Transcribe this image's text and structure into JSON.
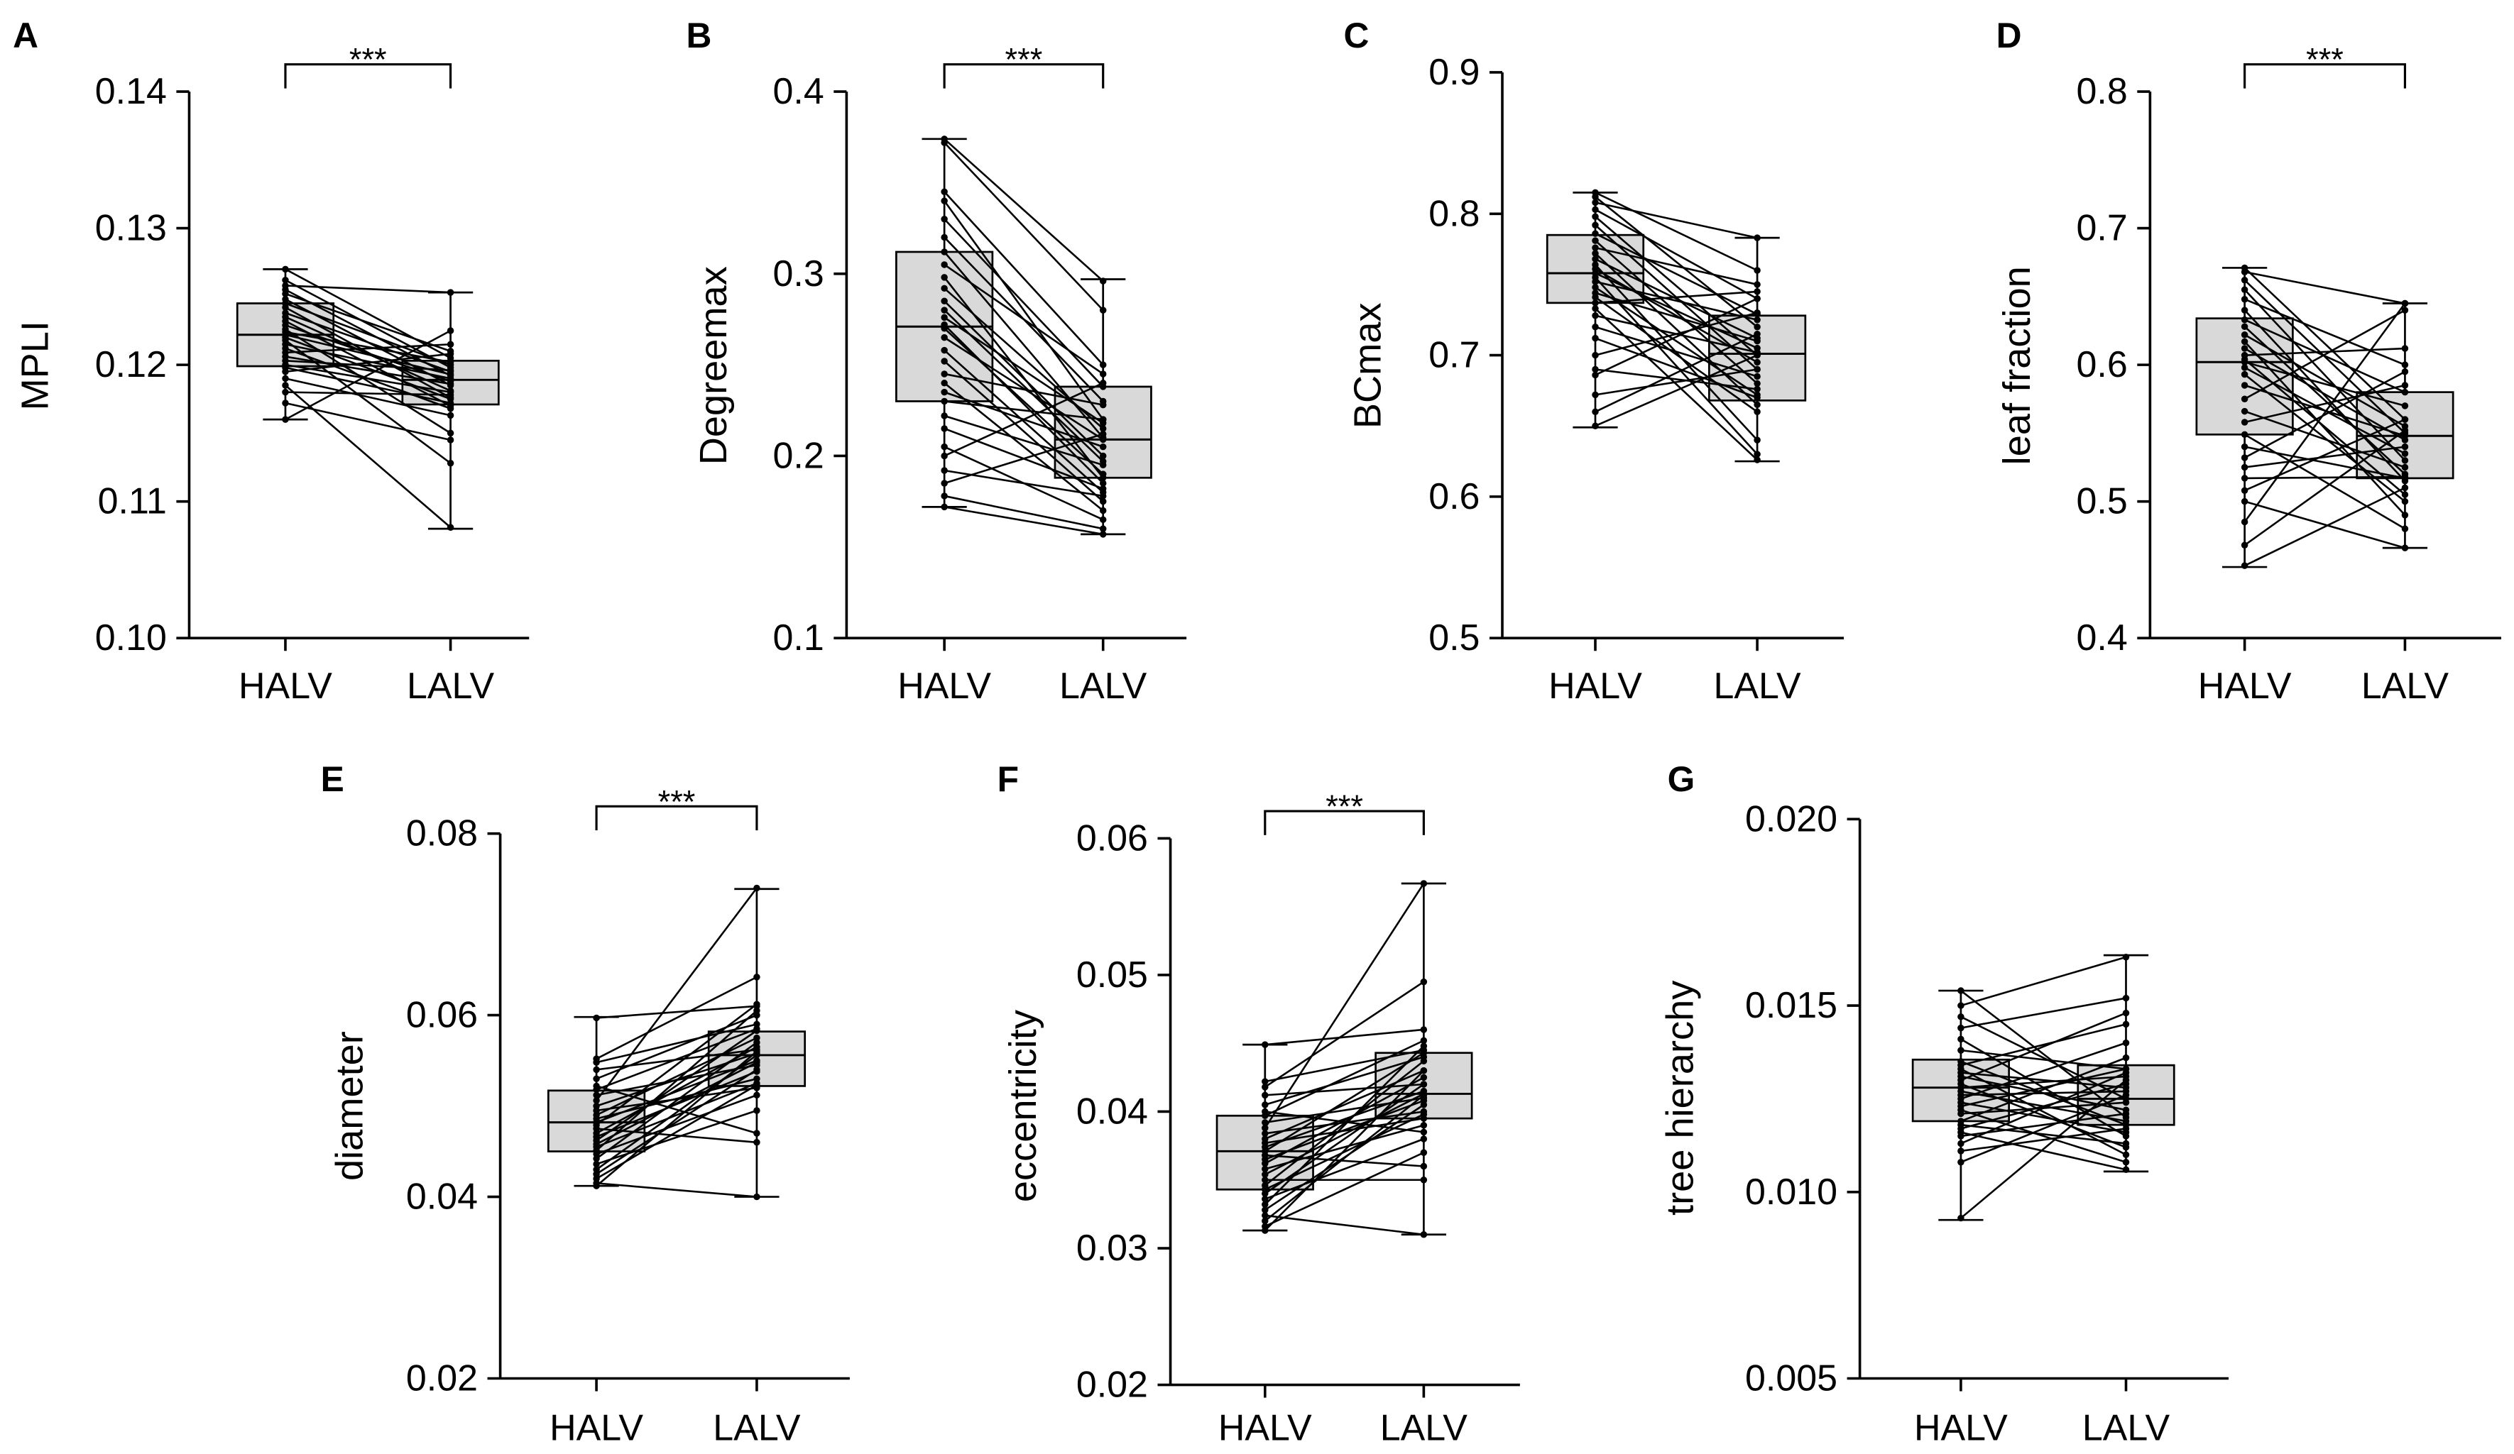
{
  "style": {
    "box_fill": "#d9d9d9",
    "ink": "#000000"
  },
  "chart_data": [
    {
      "panel": "A",
      "type": "box",
      "ylabel": "MPLI",
      "categories": [
        "HALV",
        "LALV"
      ],
      "ylim": [
        0.1,
        0.14
      ],
      "yticks": [
        "0.10",
        "0.11",
        "0.12",
        "0.13",
        "0.14"
      ],
      "significance": "***",
      "box": [
        {
          "min": 0.116,
          "q1": 0.1199,
          "median": 0.1222,
          "q3": 0.1245,
          "max": 0.127
        },
        {
          "min": 0.108,
          "q1": 0.1171,
          "median": 0.1189,
          "q3": 0.1203,
          "max": 0.1253
        }
      ],
      "pairs": [
        [
          0.127,
          0.1205
        ],
        [
          0.1262,
          0.1198
        ],
        [
          0.1258,
          0.1253
        ],
        [
          0.1255,
          0.1192
        ],
        [
          0.1252,
          0.121
        ],
        [
          0.1248,
          0.1185
        ],
        [
          0.1245,
          0.12
        ],
        [
          0.1242,
          0.1176
        ],
        [
          0.1238,
          0.1195
        ],
        [
          0.1235,
          0.1181
        ],
        [
          0.1232,
          0.117
        ],
        [
          0.1229,
          0.1188
        ],
        [
          0.1226,
          0.115
        ],
        [
          0.1224,
          0.1202
        ],
        [
          0.1222,
          0.1193
        ],
        [
          0.122,
          0.1175
        ],
        [
          0.1218,
          0.1128
        ],
        [
          0.1215,
          0.119
        ],
        [
          0.1212,
          0.1168
        ],
        [
          0.1209,
          0.1215
        ],
        [
          0.1206,
          0.1186
        ],
        [
          0.1203,
          0.1196
        ],
        [
          0.12,
          0.118
        ],
        [
          0.1198,
          0.1172
        ],
        [
          0.1195,
          0.1208
        ],
        [
          0.119,
          0.1163
        ],
        [
          0.1185,
          0.1081
        ],
        [
          0.118,
          0.1178
        ],
        [
          0.1172,
          0.1145
        ],
        [
          0.116,
          0.1225
        ]
      ]
    },
    {
      "panel": "B",
      "type": "box",
      "ylabel": "Degreemax",
      "categories": [
        "HALV",
        "LALV"
      ],
      "ylim": [
        0.1,
        0.4
      ],
      "yticks": [
        "0.1",
        "0.2",
        "0.3",
        "0.4"
      ],
      "significance": "***",
      "box": [
        {
          "min": 0.172,
          "q1": 0.23,
          "median": 0.271,
          "q3": 0.312,
          "max": 0.374
        },
        {
          "min": 0.157,
          "q1": 0.188,
          "median": 0.209,
          "q3": 0.238,
          "max": 0.297
        }
      ],
      "pairs": [
        [
          0.374,
          0.296
        ],
        [
          0.372,
          0.28
        ],
        [
          0.345,
          0.25
        ],
        [
          0.34,
          0.22
        ],
        [
          0.33,
          0.238
        ],
        [
          0.32,
          0.23
        ],
        [
          0.312,
          0.21
        ],
        [
          0.305,
          0.245
        ],
        [
          0.298,
          0.188
        ],
        [
          0.292,
          0.215
        ],
        [
          0.285,
          0.2
        ],
        [
          0.28,
          0.197
        ],
        [
          0.276,
          0.218
        ],
        [
          0.272,
          0.185
        ],
        [
          0.27,
          0.19
        ],
        [
          0.265,
          0.209
        ],
        [
          0.258,
          0.18
        ],
        [
          0.252,
          0.175
        ],
        [
          0.245,
          0.228
        ],
        [
          0.24,
          0.17
        ],
        [
          0.235,
          0.205
        ],
        [
          0.23,
          0.22
        ],
        [
          0.222,
          0.195
        ],
        [
          0.215,
          0.182
        ],
        [
          0.205,
          0.165
        ],
        [
          0.2,
          0.24
        ],
        [
          0.192,
          0.178
        ],
        [
          0.185,
          0.212
        ],
        [
          0.178,
          0.16
        ],
        [
          0.172,
          0.157
        ]
      ]
    },
    {
      "panel": "C",
      "type": "box",
      "ylabel": "BCmax",
      "categories": [
        "HALV",
        "LALV"
      ],
      "ylim": [
        0.5,
        0.9
      ],
      "yticks": [
        "0.5",
        "0.6",
        "0.7",
        "0.8",
        "0.9"
      ],
      "significance": null,
      "box": [
        {
          "min": 0.649,
          "q1": 0.737,
          "median": 0.758,
          "q3": 0.785,
          "max": 0.815
        },
        {
          "min": 0.625,
          "q1": 0.668,
          "median": 0.701,
          "q3": 0.728,
          "max": 0.783
        }
      ],
      "pairs": [
        [
          0.815,
          0.76
        ],
        [
          0.812,
          0.72
        ],
        [
          0.808,
          0.783
        ],
        [
          0.803,
          0.74
        ],
        [
          0.798,
          0.7
        ],
        [
          0.792,
          0.69
        ],
        [
          0.786,
          0.729
        ],
        [
          0.781,
          0.68
        ],
        [
          0.776,
          0.75
        ],
        [
          0.772,
          0.665
        ],
        [
          0.768,
          0.712
        ],
        [
          0.764,
          0.64
        ],
        [
          0.761,
          0.695
        ],
        [
          0.758,
          0.705
        ],
        [
          0.755,
          0.63
        ],
        [
          0.752,
          0.725
        ],
        [
          0.748,
          0.672
        ],
        [
          0.744,
          0.71
        ],
        [
          0.741,
          0.66
        ],
        [
          0.737,
          0.745
        ],
        [
          0.733,
          0.626
        ],
        [
          0.728,
          0.702
        ],
        [
          0.72,
          0.685
        ],
        [
          0.712,
          0.67
        ],
        [
          0.7,
          0.73
        ],
        [
          0.69,
          0.676
        ],
        [
          0.686,
          0.74
        ],
        [
          0.672,
          0.69
        ],
        [
          0.66,
          0.715
        ],
        [
          0.65,
          0.7
        ]
      ]
    },
    {
      "panel": "D",
      "type": "box",
      "ylabel": "leaf fraction",
      "categories": [
        "HALV",
        "LALV"
      ],
      "ylim": [
        0.4,
        0.8
      ],
      "yticks": [
        "0.4",
        "0.5",
        "0.6",
        "0.7",
        "0.8"
      ],
      "significance": "***",
      "box": [
        {
          "min": 0.452,
          "q1": 0.549,
          "median": 0.602,
          "q3": 0.634,
          "max": 0.671
        },
        {
          "min": 0.466,
          "q1": 0.517,
          "median": 0.548,
          "q3": 0.58,
          "max": 0.645
        }
      ],
      "pairs": [
        [
          0.671,
          0.56
        ],
        [
          0.668,
          0.645
        ],
        [
          0.662,
          0.55
        ],
        [
          0.655,
          0.53
        ],
        [
          0.648,
          0.6
        ],
        [
          0.64,
          0.515
        ],
        [
          0.633,
          0.58
        ],
        [
          0.628,
          0.52
        ],
        [
          0.622,
          0.555
        ],
        [
          0.617,
          0.49
        ],
        [
          0.612,
          0.545
        ],
        [
          0.607,
          0.612
        ],
        [
          0.604,
          0.505
        ],
        [
          0.602,
          0.57
        ],
        [
          0.598,
          0.535
        ],
        [
          0.593,
          0.5
        ],
        [
          0.585,
          0.548
        ],
        [
          0.575,
          0.64
        ],
        [
          0.566,
          0.525
        ],
        [
          0.558,
          0.585
        ],
        [
          0.549,
          0.48
        ],
        [
          0.54,
          0.517
        ],
        [
          0.532,
          0.595
        ],
        [
          0.525,
          0.54
        ],
        [
          0.517,
          0.518
        ],
        [
          0.508,
          0.56
        ],
        [
          0.5,
          0.466
        ],
        [
          0.485,
          0.645
        ],
        [
          0.468,
          0.552
        ],
        [
          0.453,
          0.51
        ]
      ]
    },
    {
      "panel": "E",
      "type": "box",
      "ylabel": "diameter",
      "categories": [
        "HALV",
        "LALV"
      ],
      "ylim": [
        0.02,
        0.08
      ],
      "yticks": [
        "0.02",
        "0.04",
        "0.06",
        "0.08"
      ],
      "significance": "***",
      "box": [
        {
          "min": 0.0412,
          "q1": 0.045,
          "median": 0.0482,
          "q3": 0.0517,
          "max": 0.0598
        },
        {
          "min": 0.04,
          "q1": 0.0522,
          "median": 0.0556,
          "q3": 0.0582,
          "max": 0.0739
        }
      ],
      "pairs": [
        [
          0.0597,
          0.061
        ],
        [
          0.0552,
          0.0642
        ],
        [
          0.0548,
          0.059
        ],
        [
          0.054,
          0.0562
        ],
        [
          0.053,
          0.06
        ],
        [
          0.0522,
          0.047
        ],
        [
          0.0518,
          0.0585
        ],
        [
          0.0512,
          0.0545
        ],
        [
          0.0506,
          0.074
        ],
        [
          0.05,
          0.0558
        ],
        [
          0.0495,
          0.052
        ],
        [
          0.049,
          0.0575
        ],
        [
          0.0486,
          0.053
        ],
        [
          0.0482,
          0.055
        ],
        [
          0.0479,
          0.0612
        ],
        [
          0.0475,
          0.046
        ],
        [
          0.047,
          0.0565
        ],
        [
          0.0466,
          0.0538
        ],
        [
          0.0462,
          0.0583
        ],
        [
          0.0458,
          0.0548
        ],
        [
          0.0455,
          0.0525
        ],
        [
          0.0451,
          0.0605
        ],
        [
          0.0447,
          0.0512
        ],
        [
          0.0442,
          0.057
        ],
        [
          0.0436,
          0.0495
        ],
        [
          0.043,
          0.0556
        ],
        [
          0.0425,
          0.054
        ],
        [
          0.042,
          0.0523
        ],
        [
          0.0415,
          0.04
        ],
        [
          0.0412,
          0.056
        ]
      ]
    },
    {
      "panel": "F",
      "type": "box",
      "ylabel": "eccentricity",
      "categories": [
        "HALV",
        "LALV"
      ],
      "ylim": [
        0.02,
        0.06
      ],
      "yticks": [
        "0.02",
        "0.03",
        "0.04",
        "0.05",
        "0.06"
      ],
      "significance": "***",
      "box": [
        {
          "min": 0.0313,
          "q1": 0.0343,
          "median": 0.0371,
          "q3": 0.0397,
          "max": 0.0449
        },
        {
          "min": 0.031,
          "q1": 0.0395,
          "median": 0.0413,
          "q3": 0.0443,
          "max": 0.0567
        }
      ],
      "pairs": [
        [
          0.0449,
          0.046
        ],
        [
          0.0422,
          0.0445
        ],
        [
          0.0418,
          0.0495
        ],
        [
          0.0412,
          0.042
        ],
        [
          0.0405,
          0.044
        ],
        [
          0.04,
          0.0385
        ],
        [
          0.0397,
          0.0452
        ],
        [
          0.0392,
          0.041
        ],
        [
          0.0388,
          0.0567
        ],
        [
          0.0384,
          0.04
        ],
        [
          0.038,
          0.043
        ],
        [
          0.0377,
          0.0395
        ],
        [
          0.0374,
          0.0415
        ],
        [
          0.0371,
          0.0443
        ],
        [
          0.0368,
          0.036
        ],
        [
          0.0365,
          0.0408
        ],
        [
          0.0362,
          0.0425
        ],
        [
          0.0358,
          0.039
        ],
        [
          0.0354,
          0.0413
        ],
        [
          0.035,
          0.035
        ],
        [
          0.0346,
          0.0437
        ],
        [
          0.0343,
          0.0398
        ],
        [
          0.034,
          0.042
        ],
        [
          0.0336,
          0.038
        ],
        [
          0.0332,
          0.0448
        ],
        [
          0.0328,
          0.0405
        ],
        [
          0.0324,
          0.031
        ],
        [
          0.032,
          0.0412
        ],
        [
          0.0316,
          0.037
        ],
        [
          0.0313,
          0.043
        ]
      ]
    },
    {
      "panel": "G",
      "type": "box",
      "ylabel": "tree hierarchy",
      "categories": [
        "HALV",
        "LALV"
      ],
      "ylim": [
        0.005,
        0.02
      ],
      "yticks": [
        "0.005",
        "0.010",
        "0.015",
        "0.020"
      ],
      "significance": null,
      "box": [
        {
          "min": 0.00925,
          "q1": 0.0119,
          "median": 0.0128,
          "q3": 0.01355,
          "max": 0.0154
        },
        {
          "min": 0.01055,
          "q1": 0.0118,
          "median": 0.0125,
          "q3": 0.0134,
          "max": 0.01635
        }
      ],
      "pairs": [
        [
          0.0154,
          0.012
        ],
        [
          0.015,
          0.0163
        ],
        [
          0.0147,
          0.0125
        ],
        [
          0.0144,
          0.0152
        ],
        [
          0.0141,
          0.0115
        ],
        [
          0.0138,
          0.0133
        ],
        [
          0.0135,
          0.0118
        ],
        [
          0.0134,
          0.0145
        ],
        [
          0.0133,
          0.011
        ],
        [
          0.0132,
          0.0128
        ],
        [
          0.0131,
          0.0122
        ],
        [
          0.013,
          0.0148
        ],
        [
          0.0129,
          0.0112
        ],
        [
          0.0128,
          0.0131
        ],
        [
          0.0127,
          0.0119
        ],
        [
          0.0126,
          0.0127
        ],
        [
          0.0125,
          0.014
        ],
        [
          0.0124,
          0.0116
        ],
        [
          0.0123,
          0.0133
        ],
        [
          0.0122,
          0.0108
        ],
        [
          0.0121,
          0.0124
        ],
        [
          0.0119,
          0.0136
        ],
        [
          0.0118,
          0.0113
        ],
        [
          0.0117,
          0.0129
        ],
        [
          0.0116,
          0.0106
        ],
        [
          0.0115,
          0.0121
        ],
        [
          0.0113,
          0.0132
        ],
        [
          0.0111,
          0.0117
        ],
        [
          0.0108,
          0.0126
        ],
        [
          0.0093,
          0.013
        ]
      ]
    }
  ]
}
